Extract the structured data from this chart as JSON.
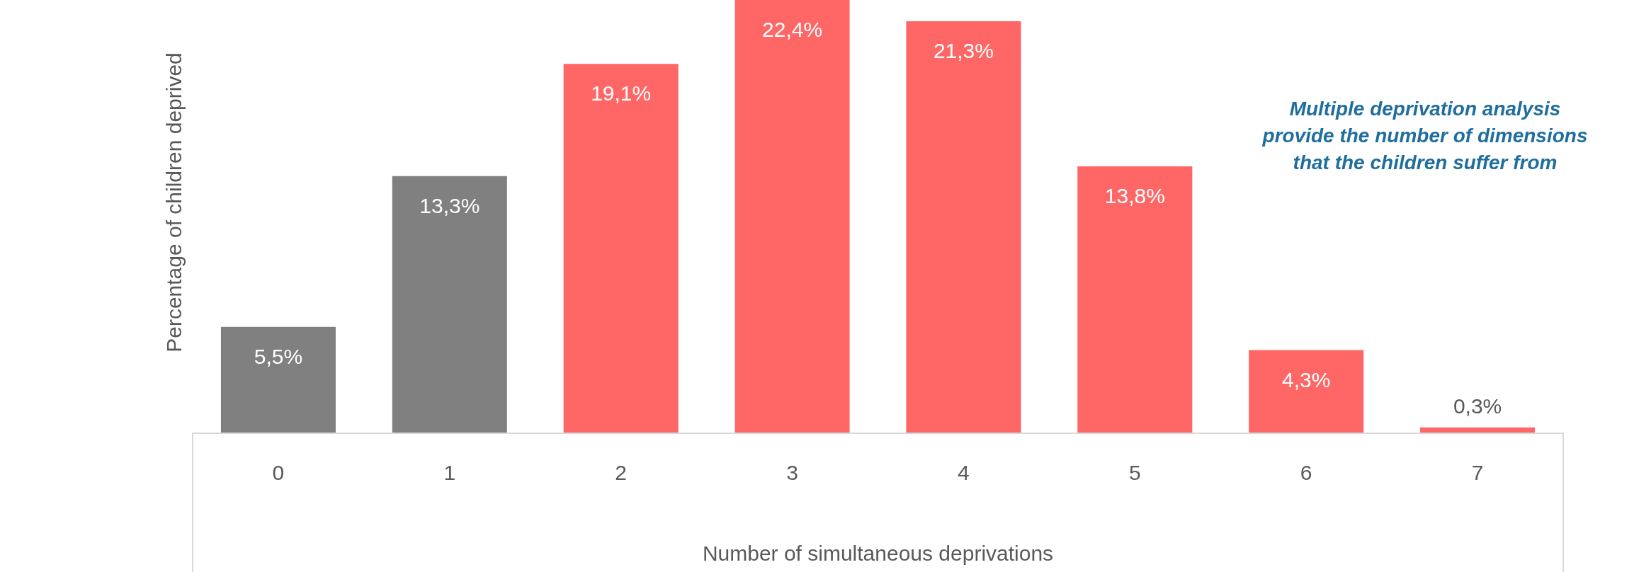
{
  "chart_data": {
    "type": "bar",
    "relative": false,
    "xlabel": "Number of simultaneous deprivations",
    "ylabel": "Percentage of children deprived",
    "categories": [
      "0",
      "1",
      "2",
      "3",
      "4",
      "5",
      "6",
      "7"
    ],
    "values": [
      5.5,
      13.3,
      19.1,
      22.4,
      21.3,
      13.8,
      4.3,
      0.3
    ],
    "colors": [
      "#808080",
      "#808080",
      "#ff6666",
      "#ff6666",
      "#ff6666",
      "#ff6666",
      "#ff6666",
      "#ff6666"
    ],
    "value_labels": [
      "5,5%",
      "13,3%",
      "19,1%",
      "22,4%",
      "21,3%",
      "13,8%",
      "4,3%",
      "0,3%"
    ],
    "annotations": [
      "Multiple deprivation analysis\nprovide the number of dimensions\nthat the children suffer from"
    ],
    "grid": false,
    "legend": false
  }
}
